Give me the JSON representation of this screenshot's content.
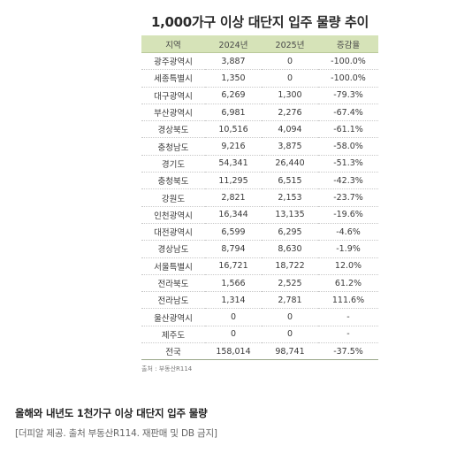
{
  "figure": {
    "title": "1,000가구 이상 대단지 입주 물량 추이",
    "headers": [
      "지역",
      "2024년",
      "2025년",
      "증감율"
    ],
    "rows": [
      [
        "광주광역시",
        "3,887",
        "0",
        "-100.0%"
      ],
      [
        "세종특별시",
        "1,350",
        "0",
        "-100.0%"
      ],
      [
        "대구광역시",
        "6,269",
        "1,300",
        "-79.3%"
      ],
      [
        "부산광역시",
        "6,981",
        "2,276",
        "-67.4%"
      ],
      [
        "경상북도",
        "10,516",
        "4,094",
        "-61.1%"
      ],
      [
        "충청남도",
        "9,216",
        "3,875",
        "-58.0%"
      ],
      [
        "경기도",
        "54,341",
        "26,440",
        "-51.3%"
      ],
      [
        "충청북도",
        "11,295",
        "6,515",
        "-42.3%"
      ],
      [
        "강원도",
        "2,821",
        "2,153",
        "-23.7%"
      ],
      [
        "인천광역시",
        "16,344",
        "13,135",
        "-19.6%"
      ],
      [
        "대전광역시",
        "6,599",
        "6,295",
        "-4.6%"
      ],
      [
        "경상남도",
        "8,794",
        "8,630",
        "-1.9%"
      ],
      [
        "서울특별시",
        "16,721",
        "18,722",
        "12.0%"
      ],
      [
        "전라북도",
        "1,566",
        "2,525",
        "61.2%"
      ],
      [
        "전라남도",
        "1,314",
        "2,781",
        "111.6%"
      ],
      [
        "울산광역시",
        "0",
        "0",
        "-"
      ],
      [
        "제주도",
        "0",
        "0",
        "-"
      ],
      [
        "전국",
        "158,014",
        "98,741",
        "-37.5%"
      ]
    ],
    "source": "출처 : 부동산R114"
  },
  "article": {
    "caption": "올해와 내년도 1천가구 이상 대단지 입주 물량",
    "credit": "[더피알 제공. 출처 부동산R114. 재판매 및 DB 금지]"
  },
  "colors": {
    "header_bg": "#d6e3b8",
    "text": "#3a3a3a"
  }
}
